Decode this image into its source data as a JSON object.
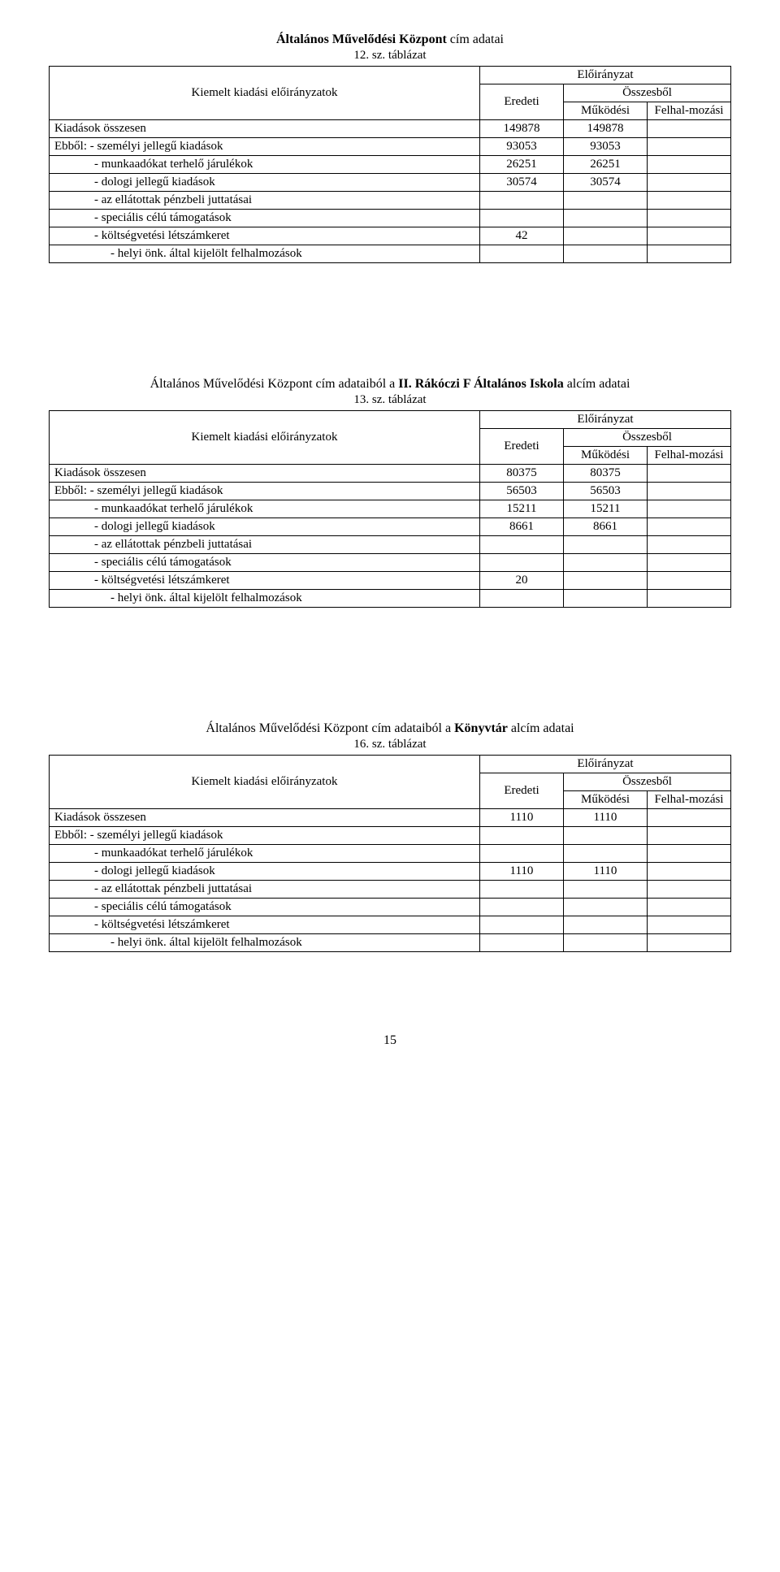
{
  "page_number": "15",
  "tables": [
    {
      "title_bold": "Általános Művelődési Központ",
      "title_rest": " cím adatai",
      "subtitle": "12. sz. táblázat",
      "header": {
        "kiemelt": "Kiemelt kiadási előirányzatok",
        "eloiranyzat": "Előirányzat",
        "eredeti": "Eredeti",
        "osszesbol": "Összesből",
        "mukodesi": "Működési",
        "felhalmozasi": "Felhal-mozási"
      },
      "rows": [
        {
          "label": "Kiadások összesen",
          "indent": 0,
          "eredeti": "149878",
          "mukodesi": "149878",
          "felhal": ""
        },
        {
          "label": "Ebből: - személyi jellegű kiadások",
          "indent": 0,
          "eredeti": "93053",
          "mukodesi": "93053",
          "felhal": ""
        },
        {
          "label": "- munkaadókat terhelő járulékok",
          "indent": 1,
          "eredeti": "26251",
          "mukodesi": "26251",
          "felhal": ""
        },
        {
          "label": "- dologi jellegű kiadások",
          "indent": 1,
          "eredeti": "30574",
          "mukodesi": "30574",
          "felhal": ""
        },
        {
          "label": "- az ellátottak pénzbeli juttatásai",
          "indent": 1,
          "eredeti": "",
          "mukodesi": "",
          "felhal": ""
        },
        {
          "label": "- speciális célú támogatások",
          "indent": 1,
          "eredeti": "",
          "mukodesi": "",
          "felhal": ""
        },
        {
          "label": "- költségvetési létszámkeret",
          "indent": 1,
          "eredeti": "42",
          "mukodesi": "",
          "felhal": ""
        },
        {
          "label": "- helyi önk. által kijelölt felhalmozások",
          "indent": 2,
          "eredeti": "",
          "mukodesi": "",
          "felhal": ""
        }
      ]
    },
    {
      "title_prefix": "Általános Művelődési Központ ",
      "title_mid": "cím adataiból  a ",
      "title_bold2": "II. Rákóczi F Általános Iskola",
      "title_rest": "  alcím adatai",
      "subtitle": "13. sz. táblázat",
      "header": {
        "kiemelt": "Kiemelt kiadási előirányzatok",
        "eloiranyzat": "Előirányzat",
        "eredeti": "Eredeti",
        "osszesbol": "Összesből",
        "mukodesi": "Működési",
        "felhalmozasi": "Felhal-mozási"
      },
      "rows": [
        {
          "label": "Kiadások összesen",
          "indent": 0,
          "eredeti": "80375",
          "mukodesi": "80375",
          "felhal": ""
        },
        {
          "label": "Ebből: - személyi jellegű kiadások",
          "indent": 0,
          "eredeti": "56503",
          "mukodesi": "56503",
          "felhal": ""
        },
        {
          "label": "- munkaadókat terhelő járulékok",
          "indent": 1,
          "eredeti": "15211",
          "mukodesi": "15211",
          "felhal": ""
        },
        {
          "label": "- dologi jellegű kiadások",
          "indent": 1,
          "eredeti": "8661",
          "mukodesi": "8661",
          "felhal": ""
        },
        {
          "label": "- az ellátottak pénzbeli juttatásai",
          "indent": 1,
          "eredeti": "",
          "mukodesi": "",
          "felhal": ""
        },
        {
          "label": "- speciális célú támogatások",
          "indent": 1,
          "eredeti": "",
          "mukodesi": "",
          "felhal": ""
        },
        {
          "label": "- költségvetési létszámkeret",
          "indent": 1,
          "eredeti": "20",
          "mukodesi": "",
          "felhal": ""
        },
        {
          "label": "- helyi önk. által kijelölt felhalmozások",
          "indent": 2,
          "eredeti": "",
          "mukodesi": "",
          "felhal": ""
        }
      ]
    },
    {
      "title_prefix": "Általános Művelődési Központ ",
      "title_mid": "cím adataiból  a ",
      "title_bold2": "Könyvtár",
      "title_rest": "  alcím adatai",
      "subtitle": "16. sz. táblázat",
      "header": {
        "kiemelt": "Kiemelt kiadási előirányzatok",
        "eloiranyzat": "Előirányzat",
        "eredeti": "Eredeti",
        "osszesbol": "Összesből",
        "mukodesi": "Működési",
        "felhalmozasi": "Felhal-mozási"
      },
      "rows": [
        {
          "label": "Kiadások összesen",
          "indent": 0,
          "eredeti": "1110",
          "mukodesi": "1110",
          "felhal": ""
        },
        {
          "label": "Ebből: - személyi jellegű kiadások",
          "indent": 0,
          "eredeti": "",
          "mukodesi": "",
          "felhal": ""
        },
        {
          "label": "- munkaadókat terhelő járulékok",
          "indent": 1,
          "eredeti": "",
          "mukodesi": "",
          "felhal": ""
        },
        {
          "label": "- dologi jellegű kiadások",
          "indent": 1,
          "eredeti": "1110",
          "mukodesi": "1110",
          "felhal": ""
        },
        {
          "label": "- az ellátottak pénzbeli juttatásai",
          "indent": 1,
          "eredeti": "",
          "mukodesi": "",
          "felhal": ""
        },
        {
          "label": "- speciális célú támogatások",
          "indent": 1,
          "eredeti": "",
          "mukodesi": "",
          "felhal": ""
        },
        {
          "label": "- költségvetési létszámkeret",
          "indent": 1,
          "eredeti": "",
          "mukodesi": "",
          "felhal": ""
        },
        {
          "label": "- helyi önk. által kijelölt felhalmozások",
          "indent": 2,
          "eredeti": "",
          "mukodesi": "",
          "felhal": ""
        }
      ]
    }
  ]
}
